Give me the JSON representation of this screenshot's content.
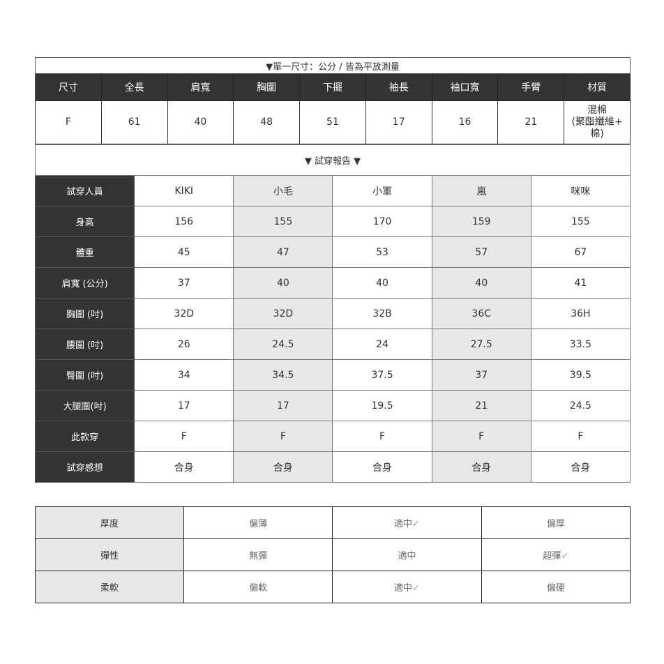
{
  "size_table": {
    "title": "▼單一尺寸：公分 / 皆為平放測量",
    "headers": [
      "尺寸",
      "全長",
      "肩寬",
      "胸圍",
      "下擺",
      "袖長",
      "袖口寬",
      "手臂",
      "材質"
    ],
    "values": [
      "F",
      "61",
      "40",
      "48",
      "51",
      "17",
      "16",
      "21",
      "混棉\n(聚酯纖維+\n棉)"
    ]
  },
  "fit_report": {
    "title": "▼ 試穿報告 ▼",
    "rows": [
      {
        "label": "試穿人員",
        "values": [
          "KIKI",
          "小毛",
          "小軍",
          "嵐",
          "咪咪"
        ]
      },
      {
        "label": "身高",
        "values": [
          "156",
          "155",
          "170",
          "159",
          "155"
        ]
      },
      {
        "label": "體重",
        "values": [
          "45",
          "47",
          "53",
          "57",
          "67"
        ]
      },
      {
        "label": "肩寬 (公分)",
        "values": [
          "37",
          "40",
          "40",
          "40",
          "41"
        ]
      },
      {
        "label": "胸圍 (吋)",
        "values": [
          "32D",
          "32D",
          "32B",
          "36C",
          "36H"
        ]
      },
      {
        "label": "腰圍 (吋)",
        "values": [
          "26",
          "24.5",
          "24",
          "27.5",
          "33.5"
        ]
      },
      {
        "label": "臀圍 (吋)",
        "values": [
          "34",
          "34.5",
          "37.5",
          "37",
          "39.5"
        ]
      },
      {
        "label": "大腿圍(吋)",
        "values": [
          "17",
          "17",
          "19.5",
          "21",
          "24.5"
        ]
      },
      {
        "label": "此款穿",
        "values": [
          "F",
          "F",
          "F",
          "F",
          "F"
        ]
      },
      {
        "label": "試穿感想",
        "values": [
          "合身",
          "合身",
          "合身",
          "合身",
          "合身"
        ]
      }
    ]
  },
  "properties": {
    "check_mark": "✓",
    "check_color": "#f08080",
    "rows": [
      {
        "label": "厚度",
        "options": [
          "偏薄",
          "適中",
          "偏厚"
        ],
        "selected": 1
      },
      {
        "label": "彈性",
        "options": [
          "無彈",
          "適中",
          "超彈"
        ],
        "selected": 2
      },
      {
        "label": "柔軟",
        "options": [
          "偏軟",
          "適中",
          "偏硬"
        ],
        "selected": 1
      }
    ]
  }
}
